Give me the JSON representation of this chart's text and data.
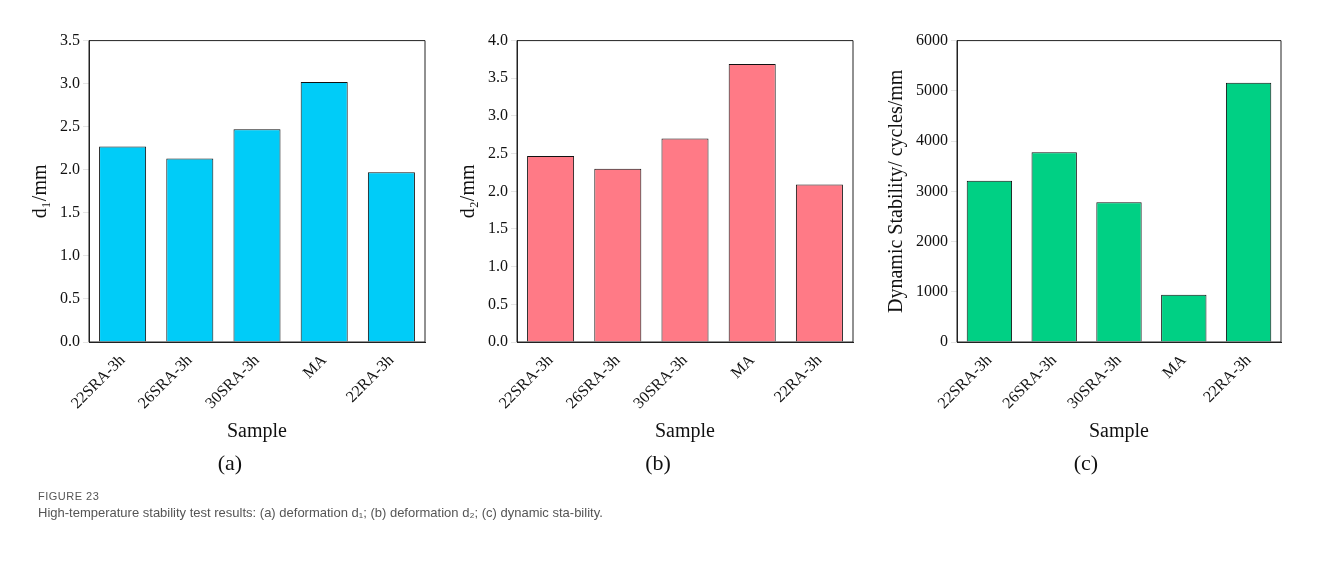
{
  "chart_data": [
    {
      "type": "bar",
      "categories": [
        "22SRA-3h",
        "26SRA-3h",
        "30SRA-3h",
        "MA",
        "22RA-3h"
      ],
      "values": [
        2.27,
        2.13,
        2.47,
        3.02,
        1.97
      ],
      "color": "#00ccf8",
      "xlabel": "Sample",
      "ylabel": "d₁/mm",
      "ylim": [
        0,
        3.5
      ],
      "yticks": [
        {
          "value": 0,
          "label": "0.0"
        },
        {
          "value": 0.5,
          "label": "0.5"
        },
        {
          "value": 1,
          "label": "1.0"
        },
        {
          "value": 1.5,
          "label": "1.5"
        },
        {
          "value": 2,
          "label": "2.0"
        },
        {
          "value": 2.5,
          "label": "2.5"
        },
        {
          "value": 3,
          "label": "3.0"
        },
        {
          "value": 3.5,
          "label": "3.5"
        }
      ],
      "grid": false,
      "legend": false,
      "annotations": [
        "(a)"
      ]
    },
    {
      "type": "bar",
      "categories": [
        "22SRA-3h",
        "26SRA-3h",
        "30SRA-3h",
        "MA",
        "22RA-3h"
      ],
      "values": [
        2.47,
        2.3,
        2.7,
        3.69,
        2.09
      ],
      "color": "#ff7a86",
      "xlabel": "Sample",
      "ylabel": "d₂/mm",
      "ylim": [
        0,
        4.0
      ],
      "yticks": [
        {
          "value": 0,
          "label": "0.0"
        },
        {
          "value": 0.5,
          "label": "0.5"
        },
        {
          "value": 1,
          "label": "1.0"
        },
        {
          "value": 1.5,
          "label": "1.5"
        },
        {
          "value": 2,
          "label": "2.0"
        },
        {
          "value": 2.5,
          "label": "2.5"
        },
        {
          "value": 3,
          "label": "3.0"
        },
        {
          "value": 3.5,
          "label": "3.5"
        },
        {
          "value": 4,
          "label": "4.0"
        }
      ],
      "grid": false,
      "legend": false,
      "annotations": [
        "(b)"
      ]
    },
    {
      "type": "bar",
      "categories": [
        "22SRA-3h",
        "26SRA-3h",
        "30SRA-3h",
        "MA",
        "22RA-3h"
      ],
      "values": [
        3210,
        3780,
        2780,
        940,
        5160
      ],
      "color": "#00d084",
      "xlabel": "Sample",
      "ylabel": "Dynamic Stability/ cycles/mm",
      "ylim": [
        0,
        6000
      ],
      "yticks": [
        0,
        1000,
        2000,
        3000,
        4000,
        5000,
        6000
      ],
      "grid": false,
      "legend": false,
      "annotations": [
        "(c)",
        "FIGURE 23",
        "High-temperature stability test results: (a) deformation d₁; (b) deformation d₂; (c) dynamic sta-bility."
      ]
    }
  ]
}
